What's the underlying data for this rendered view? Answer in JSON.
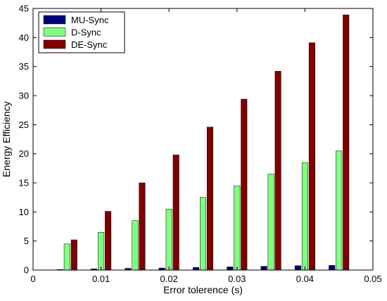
{
  "chart_data": {
    "type": "bar",
    "title": "",
    "xlabel": "Error tolerence (s)",
    "ylabel": "Energy Efficiency",
    "xlim": [
      0,
      0.05
    ],
    "ylim": [
      0,
      45
    ],
    "xticks": [
      0,
      0.01,
      0.02,
      0.03,
      0.04,
      0.05
    ],
    "xtick_labels": [
      "0",
      "0.01",
      "0.02",
      "0.03",
      "0.04",
      "0.05"
    ],
    "yticks": [
      0,
      5,
      10,
      15,
      20,
      25,
      30,
      35,
      40,
      45
    ],
    "ytick_labels": [
      "0",
      "5",
      "10",
      "15",
      "20",
      "25",
      "30",
      "35",
      "40",
      "45"
    ],
    "x": [
      0.005,
      0.01,
      0.015,
      0.02,
      0.025,
      0.03,
      0.035,
      0.04,
      0.045
    ],
    "series": [
      {
        "name": "MU-Sync",
        "color": "#00007f",
        "values": [
          0.1,
          0.2,
          0.3,
          0.35,
          0.45,
          0.55,
          0.65,
          0.75,
          0.8
        ]
      },
      {
        "name": "D-Sync",
        "color": "#80ff80",
        "values": [
          4.5,
          6.5,
          8.5,
          10.5,
          12.5,
          14.5,
          16.5,
          18.5,
          20.5
        ]
      },
      {
        "name": "DE-Sync",
        "color": "#800000",
        "values": [
          5.2,
          10.1,
          15.0,
          19.8,
          24.6,
          29.4,
          34.2,
          39.1,
          43.9
        ]
      }
    ],
    "grid": false,
    "legend_position": "top-left"
  }
}
